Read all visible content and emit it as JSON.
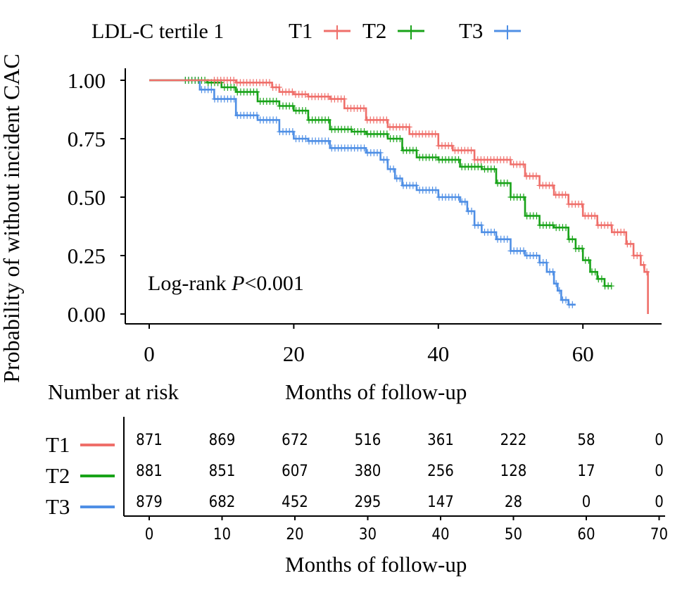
{
  "colors": {
    "T1": "#ef6f6a",
    "T2": "#19a319",
    "T3": "#4f8fe5",
    "axis": "#000000"
  },
  "legend": {
    "title": "LDL-C tertile 1",
    "items": [
      "T1",
      "T2",
      "T3"
    ]
  },
  "annotation": {
    "prefix": "Log-rank ",
    "p_label": "P",
    "suffix": "<0.001"
  },
  "risk_table": {
    "title": "Number at risk",
    "xlabel": "Months of follow-up",
    "x_ticks": [
      0,
      10,
      20,
      30,
      40,
      50,
      60,
      70
    ],
    "rows": [
      {
        "name": "T1",
        "values": [
          871,
          869,
          672,
          516,
          361,
          222,
          58,
          0
        ]
      },
      {
        "name": "T2",
        "values": [
          881,
          851,
          607,
          380,
          256,
          128,
          17,
          0
        ]
      },
      {
        "name": "T3",
        "values": [
          879,
          682,
          452,
          295,
          147,
          28,
          0,
          0
        ]
      }
    ]
  },
  "chart_data": {
    "type": "line",
    "subtype": "kaplan-meier step",
    "title": "",
    "xlabel": "Months of follow-up",
    "ylabel": "Probability of without incident CAC",
    "xlim": [
      -3,
      70
    ],
    "ylim": [
      -0.05,
      1.05
    ],
    "x_ticks": [
      0,
      20,
      40,
      60
    ],
    "y_ticks": [
      0.0,
      0.25,
      0.5,
      0.75,
      1.0
    ],
    "y_tick_labels": [
      "0.00",
      "0.25",
      "0.50",
      "0.75",
      "1.00"
    ],
    "series": [
      {
        "name": "T1",
        "x": [
          0,
          10,
          12,
          15,
          17,
          18,
          20,
          22,
          25,
          27,
          30,
          33,
          36,
          40,
          42,
          45,
          50,
          52,
          54,
          56,
          58,
          60,
          62,
          64,
          66,
          67,
          68,
          68.5,
          69
        ],
        "y": [
          1.0,
          1.0,
          0.99,
          0.99,
          0.97,
          0.95,
          0.94,
          0.93,
          0.92,
          0.88,
          0.83,
          0.8,
          0.77,
          0.72,
          0.7,
          0.66,
          0.64,
          0.59,
          0.55,
          0.51,
          0.47,
          0.42,
          0.38,
          0.35,
          0.3,
          0.25,
          0.21,
          0.18,
          0.0
        ]
      },
      {
        "name": "T2",
        "x": [
          0,
          6,
          8,
          10,
          12,
          15,
          18,
          20,
          22,
          25,
          28,
          30,
          33,
          35,
          37,
          40,
          43,
          46,
          48,
          50,
          52,
          54,
          56,
          58,
          59,
          60,
          61,
          62,
          63,
          64
        ],
        "y": [
          1.0,
          1.0,
          0.99,
          0.97,
          0.95,
          0.91,
          0.89,
          0.87,
          0.83,
          0.79,
          0.78,
          0.77,
          0.75,
          0.7,
          0.67,
          0.66,
          0.63,
          0.62,
          0.56,
          0.5,
          0.42,
          0.38,
          0.37,
          0.32,
          0.28,
          0.23,
          0.18,
          0.15,
          0.12,
          0.12
        ]
      },
      {
        "name": "T3",
        "x": [
          0,
          6,
          7,
          9,
          12,
          15,
          18,
          20,
          22,
          25,
          30,
          32,
          33,
          34,
          35,
          37,
          40,
          43,
          44,
          45,
          46,
          48,
          50,
          52,
          54,
          55,
          56,
          56.5,
          57,
          58,
          59
        ],
        "y": [
          1.0,
          1.0,
          0.96,
          0.92,
          0.85,
          0.83,
          0.78,
          0.75,
          0.74,
          0.71,
          0.69,
          0.66,
          0.62,
          0.58,
          0.55,
          0.53,
          0.5,
          0.48,
          0.44,
          0.38,
          0.35,
          0.32,
          0.27,
          0.25,
          0.22,
          0.18,
          0.13,
          0.1,
          0.06,
          0.04,
          0.04
        ]
      }
    ]
  }
}
